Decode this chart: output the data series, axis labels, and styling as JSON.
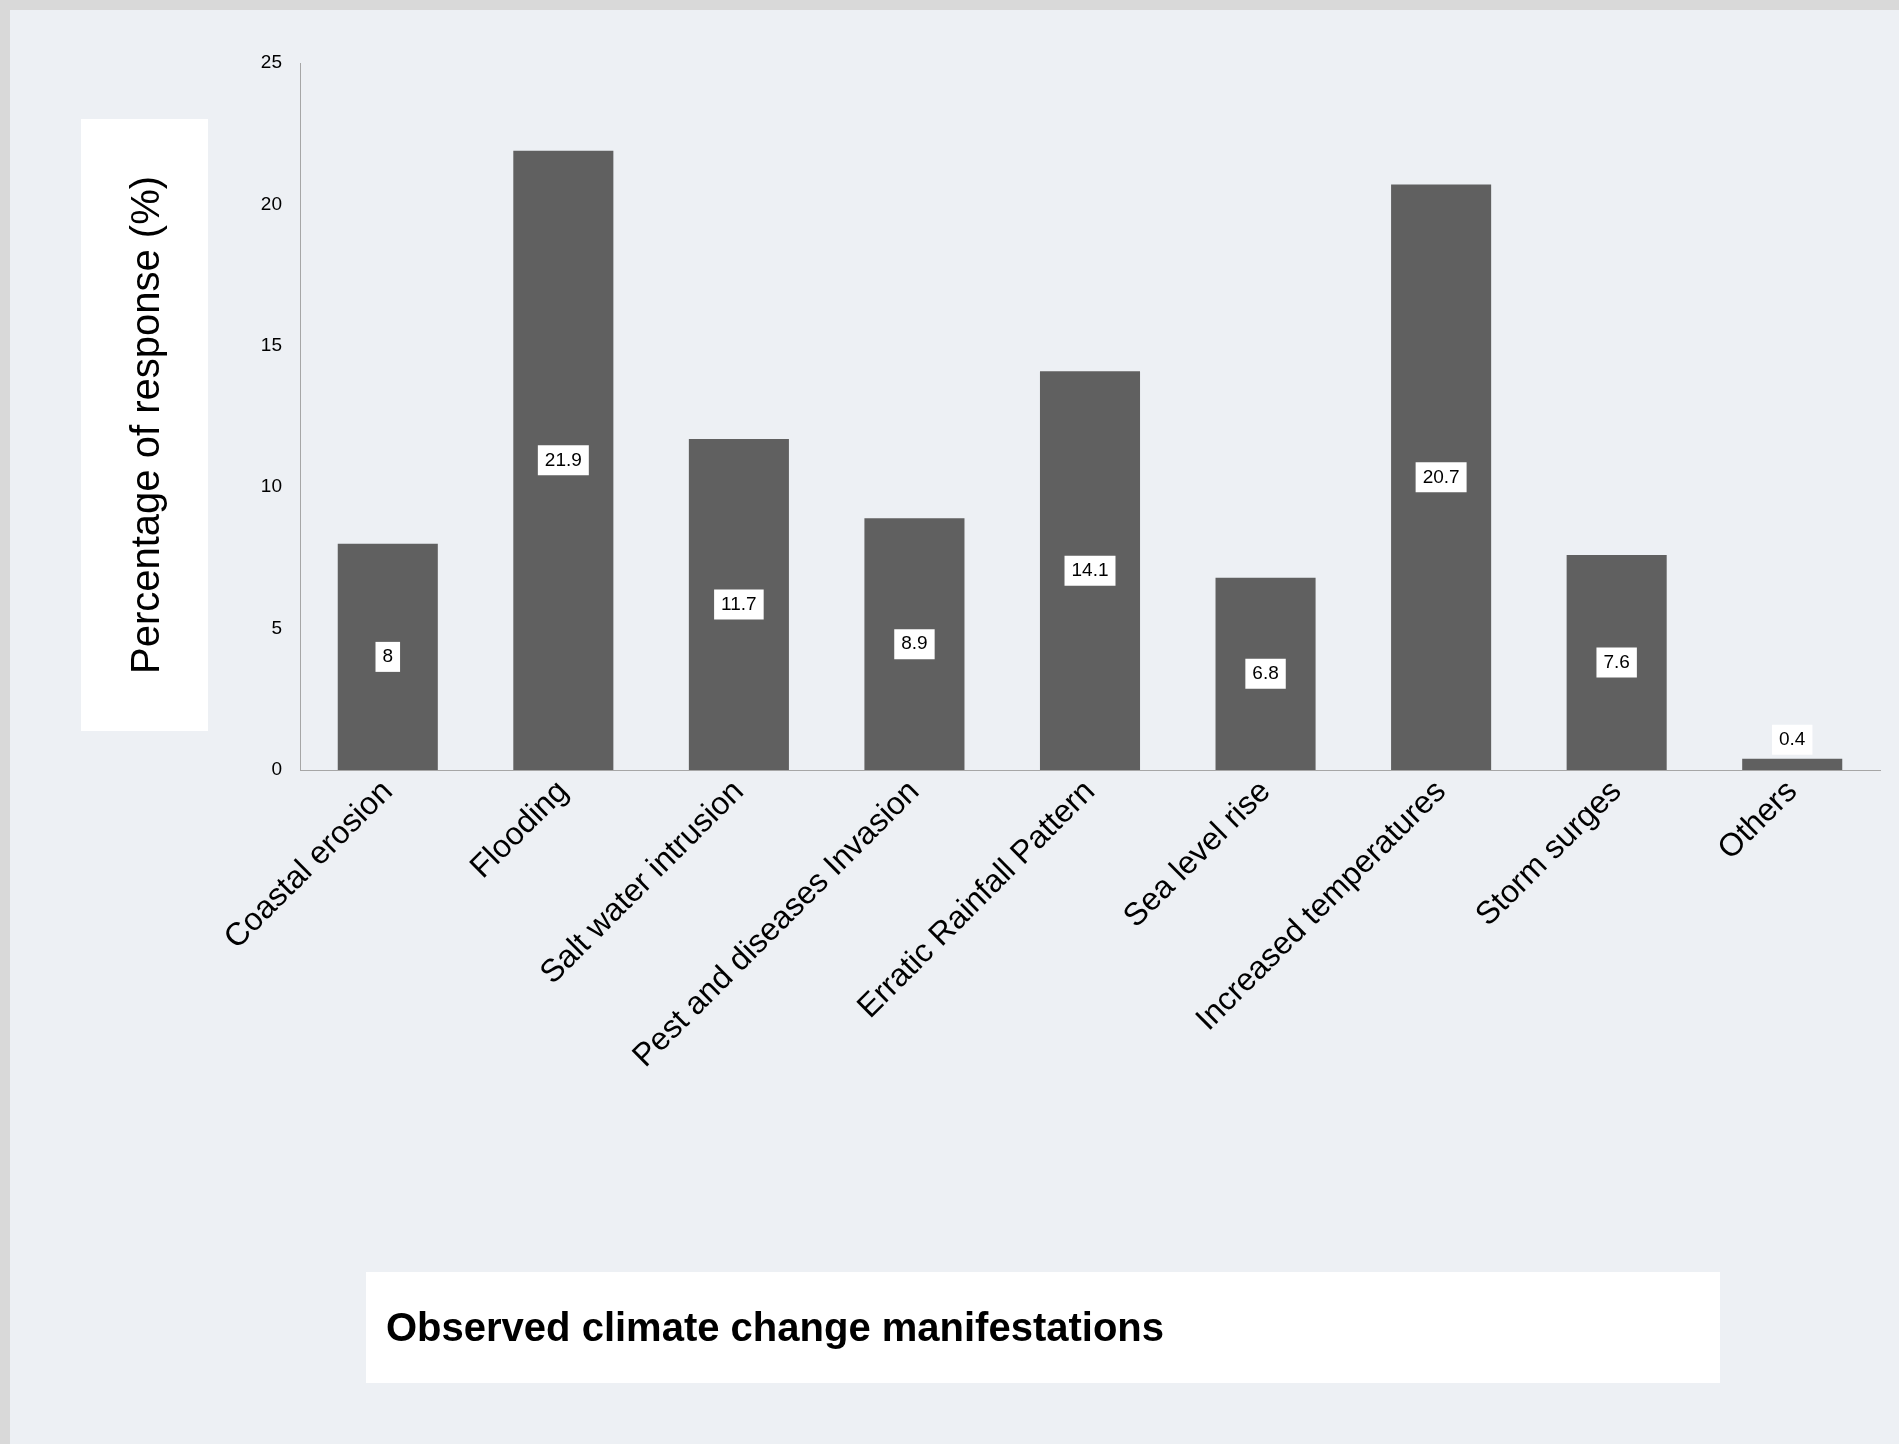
{
  "chart_data": {
    "type": "bar",
    "annotations": [
      "Observed climate change manifestations"
    ],
    "ylabel": "Percentage of response (%)",
    "categories": [
      "Coastal erosion",
      "Flooding",
      "Salt water intrusion",
      "Pest and diseases Invasion",
      "Erratic Rainfall Pattern",
      "Sea level rise",
      "Increased temperatures",
      "Storm surges",
      "Others"
    ],
    "values": [
      8,
      21.9,
      11.7,
      8.9,
      14.1,
      6.8,
      20.7,
      7.6,
      0.4
    ],
    "color": "#606060",
    "ylim": [
      0,
      25
    ],
    "yticks": [
      0,
      5,
      10,
      15,
      20,
      25
    ],
    "grid": false,
    "legend": false,
    "data_labels": true
  }
}
